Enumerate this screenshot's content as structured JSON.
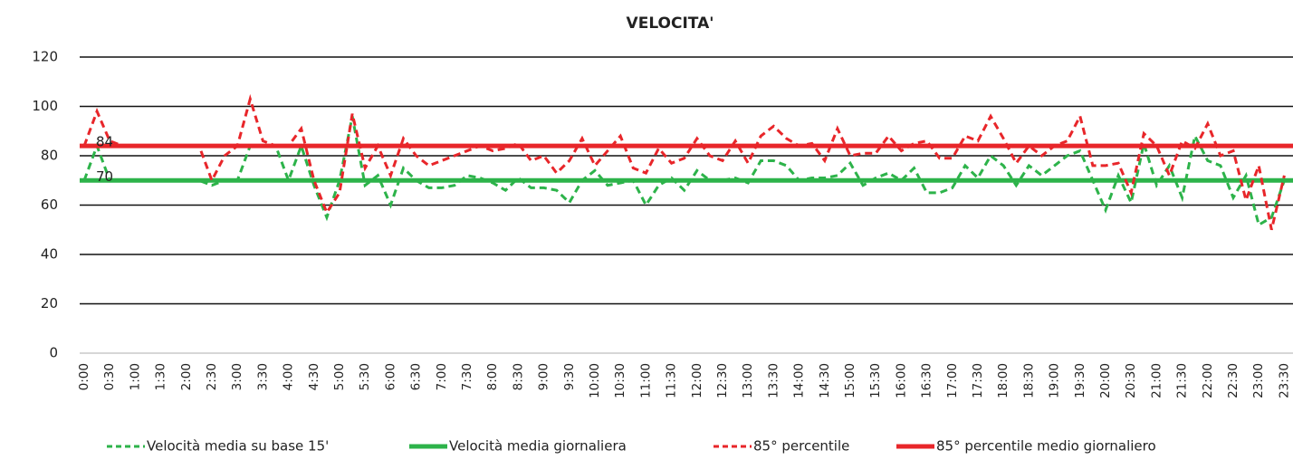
{
  "chart_data": {
    "type": "line",
    "title": "VELOCITA'",
    "categories": [
      "0:00",
      null,
      "0:30",
      null,
      "1:00",
      null,
      "1:30",
      null,
      "2:00",
      null,
      "2:30",
      null,
      "3:00",
      null,
      "3:30",
      null,
      "4:00",
      null,
      "4:30",
      null,
      "5:00",
      null,
      "5:30",
      null,
      "6:00",
      null,
      "6:30",
      null,
      "7:00",
      null,
      "7:30",
      null,
      "8:00",
      null,
      "8:30",
      null,
      "9:00",
      null,
      "9:30",
      null,
      "10:00",
      null,
      "10:30",
      null,
      "11:00",
      null,
      "11:30",
      null,
      "12:00",
      null,
      "12:30",
      null,
      "13:00",
      null,
      "13:30",
      null,
      "14:00",
      null,
      "14:30",
      null,
      "15:00",
      null,
      "15:30",
      null,
      "16:00",
      null,
      "16:30",
      null,
      "17:00",
      null,
      "17:30",
      null,
      "18:00",
      null,
      "18:30",
      null,
      "19:00",
      null,
      "19:30",
      null,
      "20:00",
      null,
      "20:30",
      null,
      "21:00",
      null,
      "21:30",
      null,
      "22:00",
      null,
      "22:30",
      null,
      "23:00",
      null,
      "23:30"
    ],
    "series": [
      {
        "name": "Velocità media su base 15'",
        "color": "#2db34a",
        "dashed": true,
        "values": [
          70,
          84,
          70,
          70,
          70,
          70,
          70,
          70,
          70,
          70,
          68,
          70,
          70,
          84,
          84,
          84,
          70,
          84,
          68,
          55,
          70,
          96,
          68,
          72,
          60,
          75,
          70,
          67,
          67,
          68,
          72,
          71,
          69,
          66,
          71,
          67,
          67,
          66,
          61,
          70,
          74,
          68,
          69,
          70,
          60,
          68,
          71,
          66,
          74,
          70,
          70,
          71,
          69,
          78,
          78,
          76,
          70,
          71,
          71,
          72,
          77,
          68,
          71,
          73,
          70,
          75,
          65,
          65,
          67,
          76,
          71,
          80,
          76,
          68,
          76,
          72,
          76,
          80,
          82,
          70,
          58,
          72,
          61,
          85,
          68,
          76,
          63,
          88,
          78,
          76,
          63,
          72,
          52,
          55,
          70
        ]
      },
      {
        "name": "Velocità media giornaliera",
        "color": "#2db34a",
        "dashed": false,
        "value": 70
      },
      {
        "name": "85° percentile",
        "color": "#e8262a",
        "dashed": true,
        "values": [
          84,
          98,
          86,
          84,
          84,
          84,
          84,
          84,
          84,
          84,
          70,
          80,
          84,
          103,
          86,
          84,
          84,
          91,
          70,
          57,
          65,
          97,
          75,
          84,
          72,
          87,
          80,
          76,
          78,
          80,
          82,
          84,
          82,
          83,
          85,
          78,
          80,
          73,
          78,
          87,
          76,
          82,
          88,
          75,
          73,
          83,
          77,
          79,
          87,
          80,
          78,
          86,
          77,
          88,
          92,
          87,
          84,
          85,
          78,
          91,
          80,
          81,
          81,
          88,
          82,
          85,
          86,
          79,
          79,
          88,
          86,
          96,
          87,
          77,
          84,
          80,
          84,
          86,
          96,
          76,
          76,
          77,
          65,
          89,
          84,
          72,
          86,
          83,
          93,
          80,
          82,
          62,
          76,
          50,
          72
        ]
      },
      {
        "name": "85° percentile medio giornaliero",
        "color": "#e8262a",
        "dashed": false,
        "value": 84
      }
    ],
    "ylim": [
      0,
      120
    ],
    "yticks": [
      0,
      20,
      40,
      60,
      80,
      100,
      120
    ],
    "grid": true,
    "legend": "bottom"
  }
}
